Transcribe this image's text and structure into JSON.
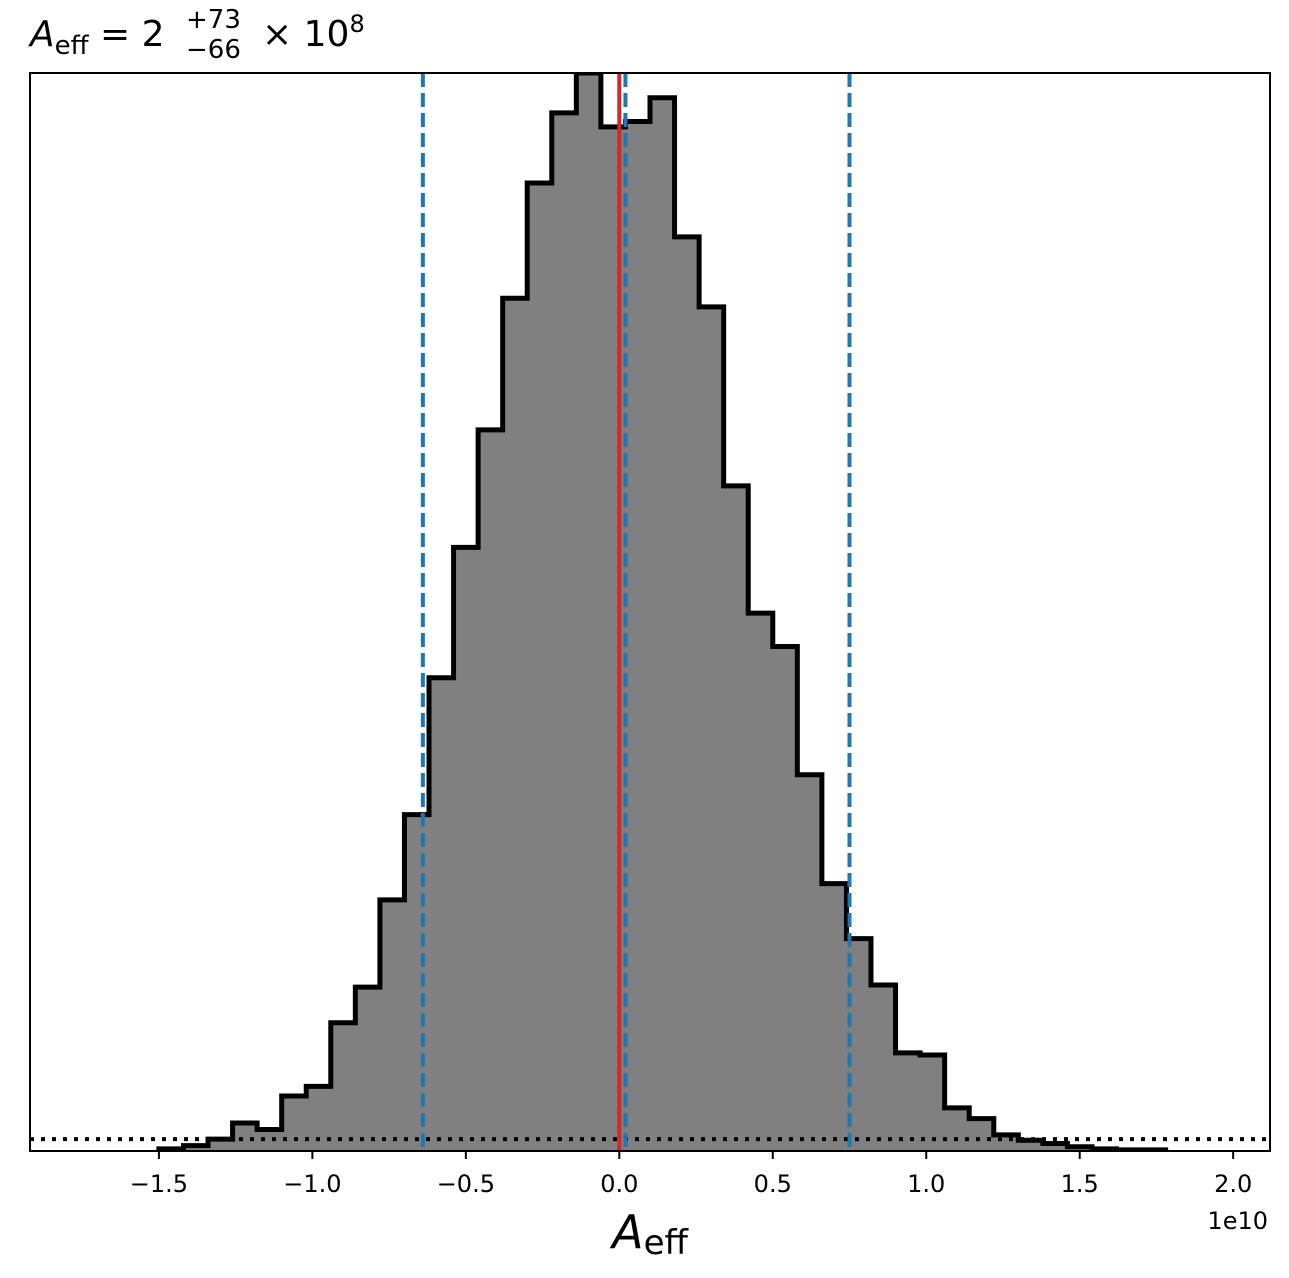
{
  "chart_data": {
    "type": "histogram",
    "title": {
      "symbol": "A",
      "subscript": "eff",
      "equals": "=",
      "value": "2",
      "upper": "+73",
      "lower": "−66",
      "times": "×",
      "base": "10",
      "exponent": "8"
    },
    "xlabel": {
      "symbol": "A",
      "subscript": "eff"
    },
    "x_offset_label": "1e10",
    "xlim": [
      -1.92,
      2.12
    ],
    "ylim": [
      0,
      1.0
    ],
    "xticks": [
      {
        "value": -1.5,
        "label": "−1.5"
      },
      {
        "value": -1.0,
        "label": "−1.0"
      },
      {
        "value": -0.5,
        "label": "−0.5"
      },
      {
        "value": 0.0,
        "label": "0.0"
      },
      {
        "value": 0.5,
        "label": "0.5"
      },
      {
        "value": 1.0,
        "label": "1.0"
      },
      {
        "value": 1.5,
        "label": "1.5"
      },
      {
        "value": 2.0,
        "label": "2.0"
      }
    ],
    "bin_edges": [
      -1.5,
      -1.42,
      -1.34,
      -1.26,
      -1.18,
      -1.1,
      -1.02,
      -0.94,
      -0.86,
      -0.78,
      -0.7,
      -0.62,
      -0.54,
      -0.46,
      -0.38,
      -0.3,
      -0.22,
      -0.14,
      -0.06,
      0.02,
      0.1,
      0.18,
      0.26,
      0.34,
      0.42,
      0.5,
      0.58,
      0.66,
      0.74,
      0.82,
      0.9,
      0.98,
      1.06,
      1.14,
      1.22,
      1.3,
      1.38,
      1.46,
      1.54,
      1.62,
      1.7,
      1.78
    ],
    "bin_heights": [
      0.002,
      0.005,
      0.011,
      0.026,
      0.02,
      0.051,
      0.06,
      0.119,
      0.152,
      0.233,
      0.312,
      0.439,
      0.56,
      0.669,
      0.791,
      0.898,
      0.963,
      1.0,
      0.95,
      0.955,
      0.977,
      0.848,
      0.783,
      0.617,
      0.499,
      0.468,
      0.349,
      0.248,
      0.197,
      0.154,
      0.091,
      0.089,
      0.04,
      0.03,
      0.015,
      0.01,
      0.007,
      0.004,
      0.002,
      0.001,
      0.001
    ],
    "annotations": {
      "median": 0.02,
      "lower_quantile": -0.64,
      "upper_quantile": 0.75,
      "reference_value": 0.0,
      "baseline_level": 0.011
    },
    "colors": {
      "fill": "#808080",
      "edge": "#000000",
      "quantile": "#1f77b4",
      "reference": "#d62728",
      "baseline": "#000000"
    },
    "grid": false
  }
}
